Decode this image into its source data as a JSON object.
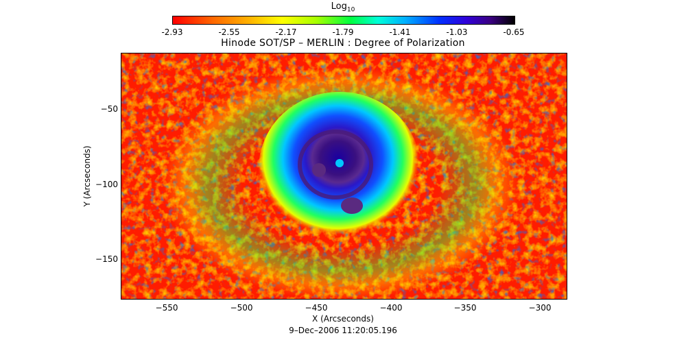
{
  "colorbar": {
    "title": "Log",
    "title_sub": "10",
    "ticks": [
      "-2.93",
      "-2.55",
      "-2.17",
      "-1.79",
      "-1.41",
      "-1.03",
      "-0.65"
    ],
    "colors": [
      "#ff0000",
      "#ffff00",
      "#00ff40",
      "#00b0ff",
      "#0030ff",
      "#3a0080",
      "#000000"
    ]
  },
  "plot": {
    "title": "Hinode SOT/SP – MERLIN : Degree of Polarization",
    "x_label": "X (Arcseconds)",
    "y_label": "Y (Arcseconds)",
    "x_ticks": [
      "−550",
      "−500",
      "−450",
      "−400",
      "−350",
      "−300"
    ],
    "y_ticks": [
      "−50",
      "−100",
      "−150"
    ],
    "x_range": [
      -580,
      -282
    ],
    "y_range": [
      -176,
      -12
    ],
    "timestamp": "9–Dec–2006 11:20:05.196"
  },
  "image": {
    "description_icon": "sunspot-polarization-map",
    "background_color": "#ff1e00"
  }
}
